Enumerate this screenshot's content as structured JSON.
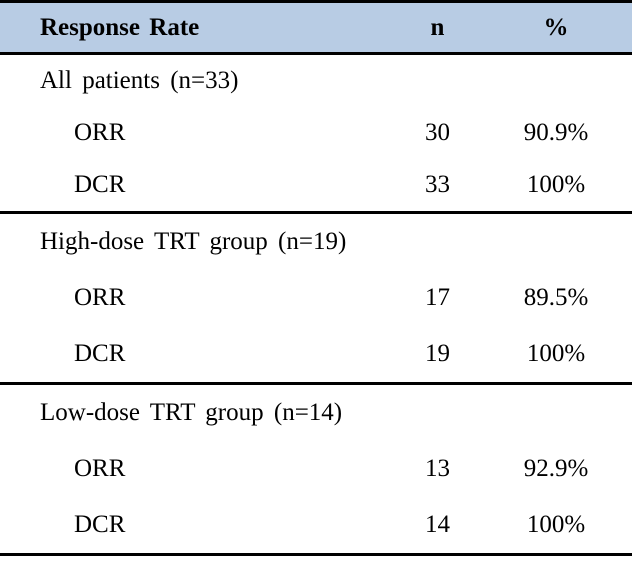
{
  "table": {
    "colors": {
      "header_bg": "#b8cce4",
      "border": "#000000",
      "text": "#000000"
    },
    "header": {
      "label": "Response Rate",
      "n": "n",
      "pct": "%"
    },
    "sections": [
      {
        "title": "All patients (n=33)",
        "rows": [
          {
            "label": "ORR",
            "n": "30",
            "pct": "90.9%"
          },
          {
            "label": "DCR",
            "n": "33",
            "pct": "100%"
          }
        ]
      },
      {
        "title": "High-dose TRT group (n=19)",
        "rows": [
          {
            "label": "ORR",
            "n": "17",
            "pct": "89.5%"
          },
          {
            "label": "DCR",
            "n": "19",
            "pct": "100%"
          }
        ]
      },
      {
        "title": "Low-dose TRT group (n=14)",
        "rows": [
          {
            "label": "ORR",
            "n": "13",
            "pct": "92.9%"
          },
          {
            "label": "DCR",
            "n": "14",
            "pct": "100%"
          }
        ]
      }
    ]
  }
}
